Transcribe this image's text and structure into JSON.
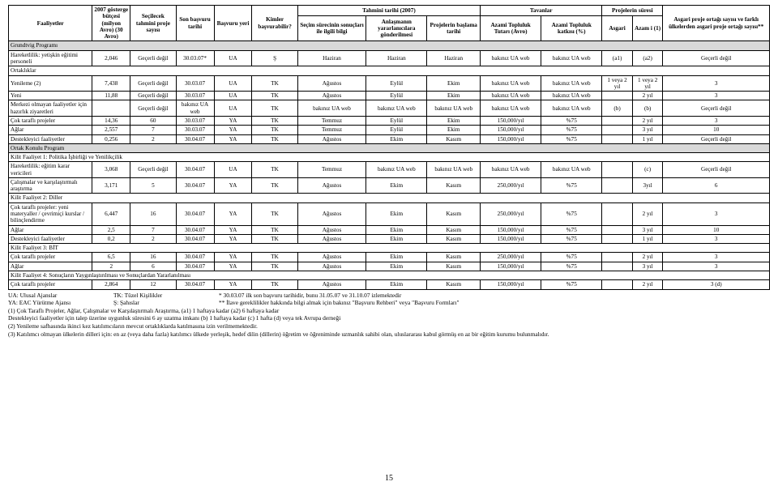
{
  "table": {
    "header": {
      "faaliyetler": "Faaliyetler",
      "butce": "2007 gösterge bütçesi (milyon Avro) (30 Avro)",
      "tahmini_proje": "Seçilecek tahmini proje sayısı",
      "son_basvuru": "Son başvuru tarihi",
      "basvuru_yeri": "Başvuru yeri",
      "kimler": "Kimler başvurabilir?",
      "tahmini_grp": "Tahmini tarihi (2007)",
      "tavanlar": "Tavanlar",
      "projelerin_suresi": "Projelerin süresi",
      "asgari_proje": "Asgari proje ortağı sayısı ve farklı ülkelerden asgari proje ortağı sayısı**",
      "secim": "Seçim sürecinin sonuçları ile ilgili bilgi",
      "anlasma": "Anlaşmanın yararlanıcılara gönderilmesi",
      "baslama": "Projelerin başlama tarihi",
      "azami_tutar": "Azami Topluluk Tutarı (Avro)",
      "azami_katki": "Azami Topluluk katkısı (%)",
      "asgari": "Asgari",
      "azami": "Azam i (1)"
    },
    "sections": {
      "grundtvig": "Grundtvig Programı",
      "ortakliklar": "Ortaklıklar",
      "ortak_konulu": "Ortak Konulu Program",
      "kf1": "Kilit Faaliyet 1: Politika İşbirliği ve Yenilikçilik",
      "kf2": "Kilit Faaliyet 2: Diller",
      "kf3": "Kilit Faaliyet 3: BİT",
      "kf4": "Kilit Faaliyet 4: Sonuçların Yaygınlaştırılması ve Sonuçlardan Yararlanılması"
    },
    "rows": [
      {
        "f": "Hareketlilik: yetişkin eğitimi personeli",
        "b": "2,046",
        "tp": "Geçerli değil",
        "sb": "30.03.07*",
        "by": "UA",
        "k": "Ş",
        "s": "Haziran",
        "a": "Haziran",
        "bt": "Haziran",
        "at": "bakınız UA web",
        "ak": "bakınız UA web",
        "as": "(a1)",
        "az": "(a2)",
        "ap": "Geçerli değil"
      },
      {
        "f": "Yenileme (2)",
        "b": "7,438",
        "tp": "Geçerli değil",
        "sb": "30.03.07",
        "by": "UA",
        "k": "TK",
        "s": "Ağustos",
        "a": "Eylül",
        "bt": "Ekim",
        "at": "bakınız UA web",
        "ak": "bakınız UA web",
        "as": "1 veya 2 yıl",
        "az": "1 veya 2 yıl",
        "ap": "3"
      },
      {
        "f": "Yeni",
        "b": "11,88",
        "tp": "Geçerli değil",
        "sb": "30.03.07",
        "by": "UA",
        "k": "TK",
        "s": "Ağustos",
        "a": "Eylül",
        "bt": "Ekim",
        "at": "bakınız UA web",
        "ak": "bakınız UA web",
        "as": "",
        "az": "2 yıl",
        "ap": "3"
      },
      {
        "f": "Merkezi olmayan faaliyetler için hazırlık ziyaretleri",
        "b": "",
        "tp": "Geçerli değil",
        "sb": "bakınız UA web",
        "by": "UA",
        "k": "TK",
        "s": "bakınız UA web",
        "a": "bakınız UA web",
        "bt": "bakınız UA web",
        "at": "bakınız UA web",
        "ak": "bakınız UA web",
        "as": "(b)",
        "az": "(b)",
        "ap": "Geçerli değil"
      },
      {
        "f": "Çok taraflı projeler",
        "b": "14,36",
        "tp": "60",
        "sb": "30.03.07",
        "by": "YA",
        "k": "TK",
        "s": "Temmuz",
        "a": "Eylül",
        "bt": "Ekim",
        "at": "150,000/yıl",
        "ak": "%75",
        "as": "",
        "az": "2 yıl",
        "ap": "3"
      },
      {
        "f": "Ağlar",
        "b": "2,557",
        "tp": "7",
        "sb": "30.03.07",
        "by": "YA",
        "k": "TK",
        "s": "Temmuz",
        "a": "Eylül",
        "bt": "Ekim",
        "at": "150,000/yıl",
        "ak": "%75",
        "as": "",
        "az": "3 yıl",
        "ap": "10"
      },
      {
        "f": "Destekleyici faaliyetler",
        "b": "0,256",
        "tp": "2",
        "sb": "30.04.07",
        "by": "YA",
        "k": "TK",
        "s": "Ağustos",
        "a": "Ekim",
        "bt": "Kasım",
        "at": "150,000/yıl",
        "ak": "%75",
        "as": "",
        "az": "1 yıl",
        "ap": "Geçerli değil"
      },
      {
        "f": "Hareketlilik: eğitim karar vericileri",
        "b": "3,068",
        "tp": "Geçerli değil",
        "sb": "30.04.07",
        "by": "UA",
        "k": "TK",
        "s": "Temmuz",
        "a": "bakınız UA web",
        "bt": "bakınız UA web",
        "at": "bakınız UA web",
        "ak": "bakınız UA web",
        "as": "",
        "az": "(c)",
        "ap": "Geçerli değil"
      },
      {
        "f": "Çalışmalar ve karşılaştırmalı araştırma",
        "b": "3,171",
        "tp": "5",
        "sb": "30.04.07",
        "by": "YA",
        "k": "TK",
        "s": "Ağustos",
        "a": "Ekim",
        "bt": "Kasım",
        "at": "250,000/yıl",
        "ak": "%75",
        "as": "",
        "az": "3yıl",
        "ap": "6"
      },
      {
        "f": "Çok taraflı projeler: yeni materyaller / çevrimiçi kurslar / bilinçlendirme",
        "b": "6,447",
        "tp": "16",
        "sb": "30.04.07",
        "by": "YA",
        "k": "TK",
        "s": "Ağustos",
        "a": "Ekim",
        "bt": "Kasım",
        "at": "250,000/yıl",
        "ak": "%75",
        "as": "",
        "az": "2 yıl",
        "ap": "3"
      },
      {
        "f": "Ağlar",
        "b": "2,5",
        "tp": "7",
        "sb": "30.04.07",
        "by": "YA",
        "k": "TK",
        "s": "Ağustos",
        "a": "Ekim",
        "bt": "Kasım",
        "at": "150,000/yıl",
        "ak": "%75",
        "as": "",
        "az": "3 yıl",
        "ap": "10"
      },
      {
        "f": "Destekleyici faaliyetler",
        "b": "0,2",
        "tp": "2",
        "sb": "30.04.07",
        "by": "YA",
        "k": "TK",
        "s": "Ağustos",
        "a": "Ekim",
        "bt": "Kasım",
        "at": "150,000/yıl",
        "ak": "%75",
        "as": "",
        "az": "1 yıl",
        "ap": "3"
      },
      {
        "f": "Çok taraflı projeler",
        "b": "6,5",
        "tp": "16",
        "sb": "30.04.07",
        "by": "YA",
        "k": "TK",
        "s": "Ağustos",
        "a": "Ekim",
        "bt": "Kasım",
        "at": "250,000/yıl",
        "ak": "%75",
        "as": "",
        "az": "2 yıl",
        "ap": "3"
      },
      {
        "f": "Ağlar",
        "b": "2",
        "tp": "6",
        "sb": "30.04.07",
        "by": "YA",
        "k": "TK",
        "s": "Ağustos",
        "a": "Ekim",
        "bt": "Kasım",
        "at": "150,000/yıl",
        "ak": "%75",
        "as": "",
        "az": "3 yıl",
        "ap": "3"
      },
      {
        "f": "Çok taraflı projeler",
        "b": "2,864",
        "tp": "12",
        "sb": "30.04.07",
        "by": "YA",
        "k": "TK",
        "s": "Ağustos",
        "a": "Ekim",
        "bt": "Kasım",
        "at": "150,000/yıl",
        "ak": "%75",
        "as": "",
        "az": "2 yıl",
        "ap": "3 (d)"
      }
    ]
  },
  "notes": {
    "l1a": "UA: Ulusal Ajanslar",
    "l1b": "TK: Tüzel Kişilikler",
    "l1c": "* 30.03.07 ilk son başvuru tarihidir, bunu 31.05.07 ve 31.10.07 izlemektedir",
    "l2a": "YA: EAC Yürütme Ajansı",
    "l2b": "Ş: Şahıslar",
    "l2c": "** İlave gereklilikler hakkında bilgi almak için bakınız \"Başvuru Rehberi\" veya \"Başvuru Formları\"",
    "l3": "(1) Çok Taraflı Projeler, Ağlar, Çalışmalar ve Karşılaştırmalı Araştırma,   (a1) 1 haftaya kadar (a2) 6 haftaya kadar",
    "l4": "Destekleyici faaliyetler için talep üzerine uygunluk süresini 6 ay uzatma imkanı            (b) 1 haftaya kadar           (c) 1 hafta           (d) veya tek Avrupa derneği",
    "l5": "(2) Yenileme safhasında ikinci kez katılımcıların mevcut ortaklıklarda katılmasına izin verilmemektedir.",
    "l6": "(3) Katılımcı olmayan ülkelerin dilleri için: en az (veya daha fazla) katılımcı ülkede yerleşik, hedef dilin (dillerin) öğretim ve öğreniminde uzmanlık sahibi olan, uluslararası kabul görmüş en az bir eğitim kurumu bulunmalıdır."
  },
  "pagenum": "15",
  "cols": [
    "11%",
    "5%",
    "6%",
    "5%",
    "5%",
    "6%",
    "9%",
    "8%",
    "7%",
    "8%",
    "8%",
    "4%",
    "4%",
    "14%"
  ]
}
